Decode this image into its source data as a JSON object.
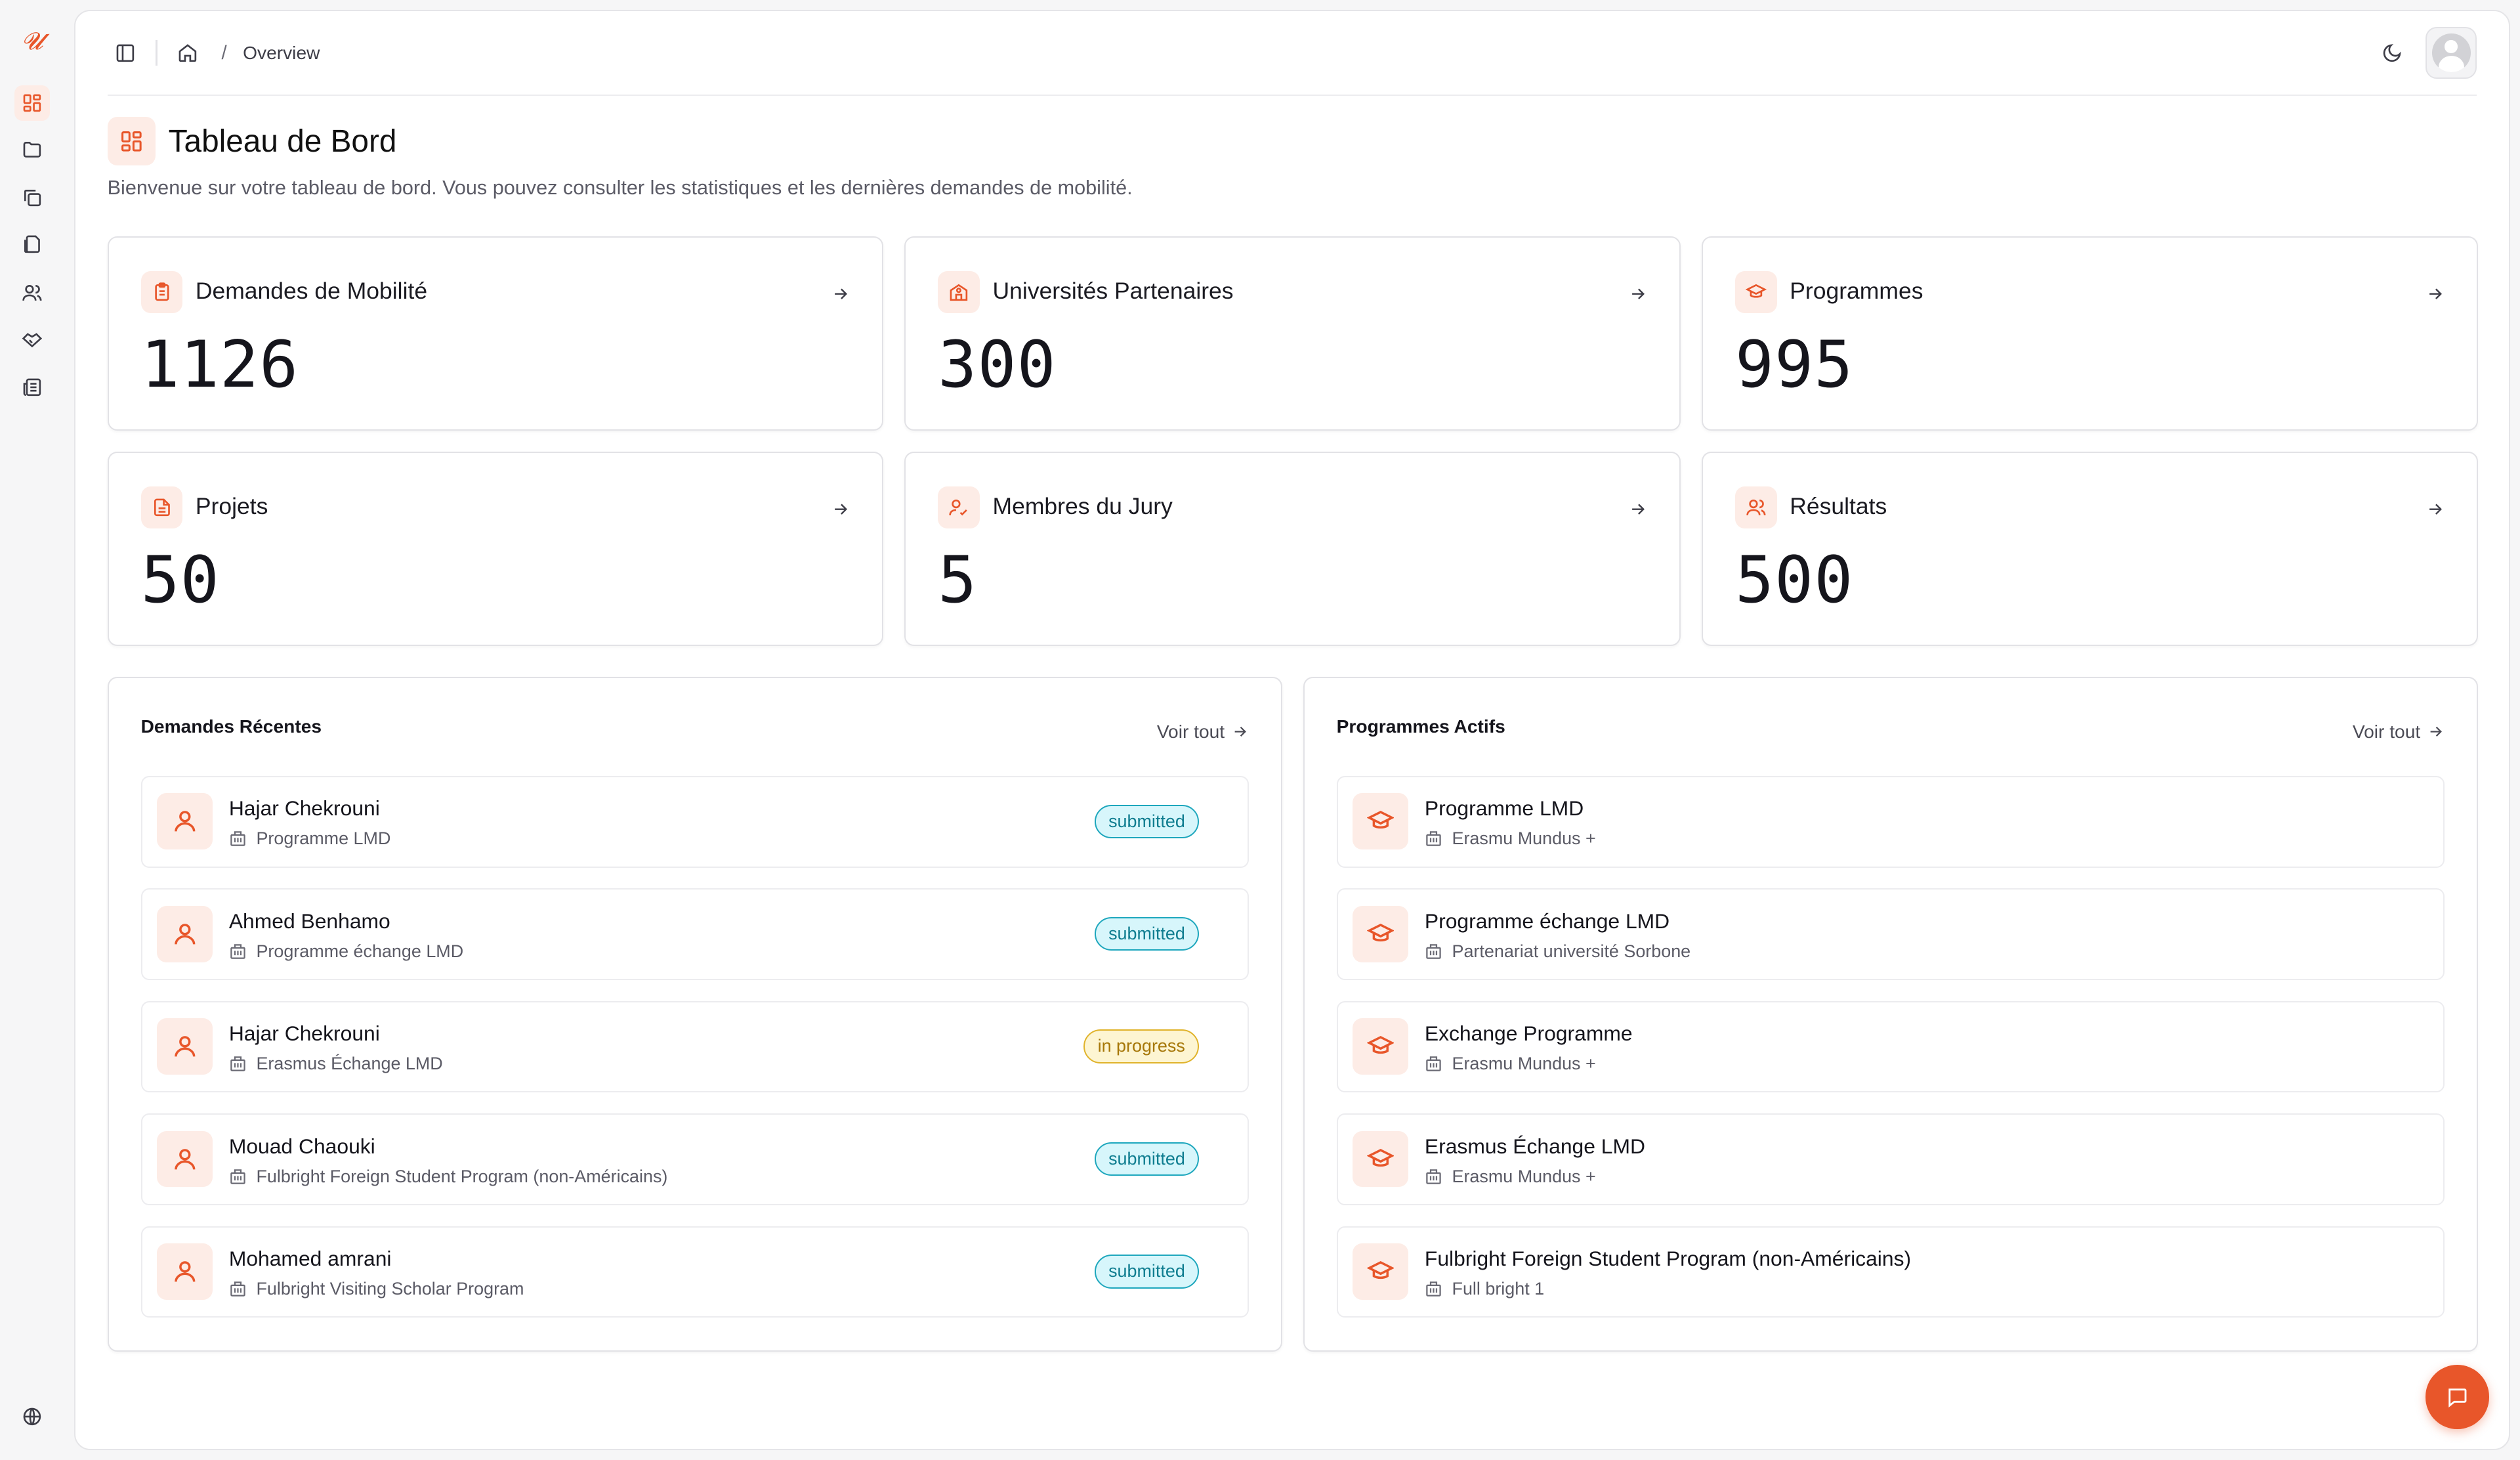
{
  "app": {
    "logo_text": "𝓤",
    "brand_color": "#e8562a"
  },
  "topbar": {
    "breadcrumb_current": "Overview"
  },
  "page": {
    "title": "Tableau de Bord",
    "subtitle": "Bienvenue sur votre tableau de bord. Vous pouvez consulter les statistiques et les dernières demandes de mobilité."
  },
  "stats": [
    {
      "label": "Demandes de Mobilité",
      "value": "1126",
      "icon": "clipboard-icon"
    },
    {
      "label": "Universités Partenaires",
      "value": "300",
      "icon": "school-icon"
    },
    {
      "label": "Programmes",
      "value": "995",
      "icon": "graduation-cap-icon"
    },
    {
      "label": "Projets",
      "value": "50",
      "icon": "file-text-icon"
    },
    {
      "label": "Membres du Jury",
      "value": "5",
      "icon": "user-check-icon"
    },
    {
      "label": "Résultats",
      "value": "500",
      "icon": "users-icon"
    }
  ],
  "recent": {
    "title": "Demandes Récentes",
    "view_all": "Voir tout",
    "items": [
      {
        "name": "Hajar Chekrouni",
        "program": "Programme LMD",
        "status": "submitted"
      },
      {
        "name": "Ahmed Benhamo",
        "program": "Programme échange LMD",
        "status": "submitted"
      },
      {
        "name": "Hajar Chekrouni",
        "program": "Erasmus Échange LMD",
        "status": "in progress"
      },
      {
        "name": "Mouad Chaouki",
        "program": "Fulbright Foreign Student Program (non-Américains)",
        "status": "submitted"
      },
      {
        "name": "Mohamed amrani",
        "program": "Fulbright Visiting Scholar Program",
        "status": "submitted"
      }
    ]
  },
  "programs": {
    "title": "Programmes Actifs",
    "view_all": "Voir tout",
    "items": [
      {
        "name": "Programme LMD",
        "partner": "Erasmu Mundus +"
      },
      {
        "name": "Programme échange LMD",
        "partner": "Partenariat université Sorbone"
      },
      {
        "name": "Exchange Programme",
        "partner": "Erasmu Mundus +"
      },
      {
        "name": "Erasmus Échange LMD",
        "partner": "Erasmu Mundus +"
      },
      {
        "name": "Fulbright Foreign Student Program (non-Américains)",
        "partner": "Full bright 1"
      }
    ]
  },
  "colors": {
    "accent": "#e8562a",
    "accent_soft": "#fdece6",
    "submitted": "#1ea7bd",
    "in_progress": "#e0b32b"
  }
}
